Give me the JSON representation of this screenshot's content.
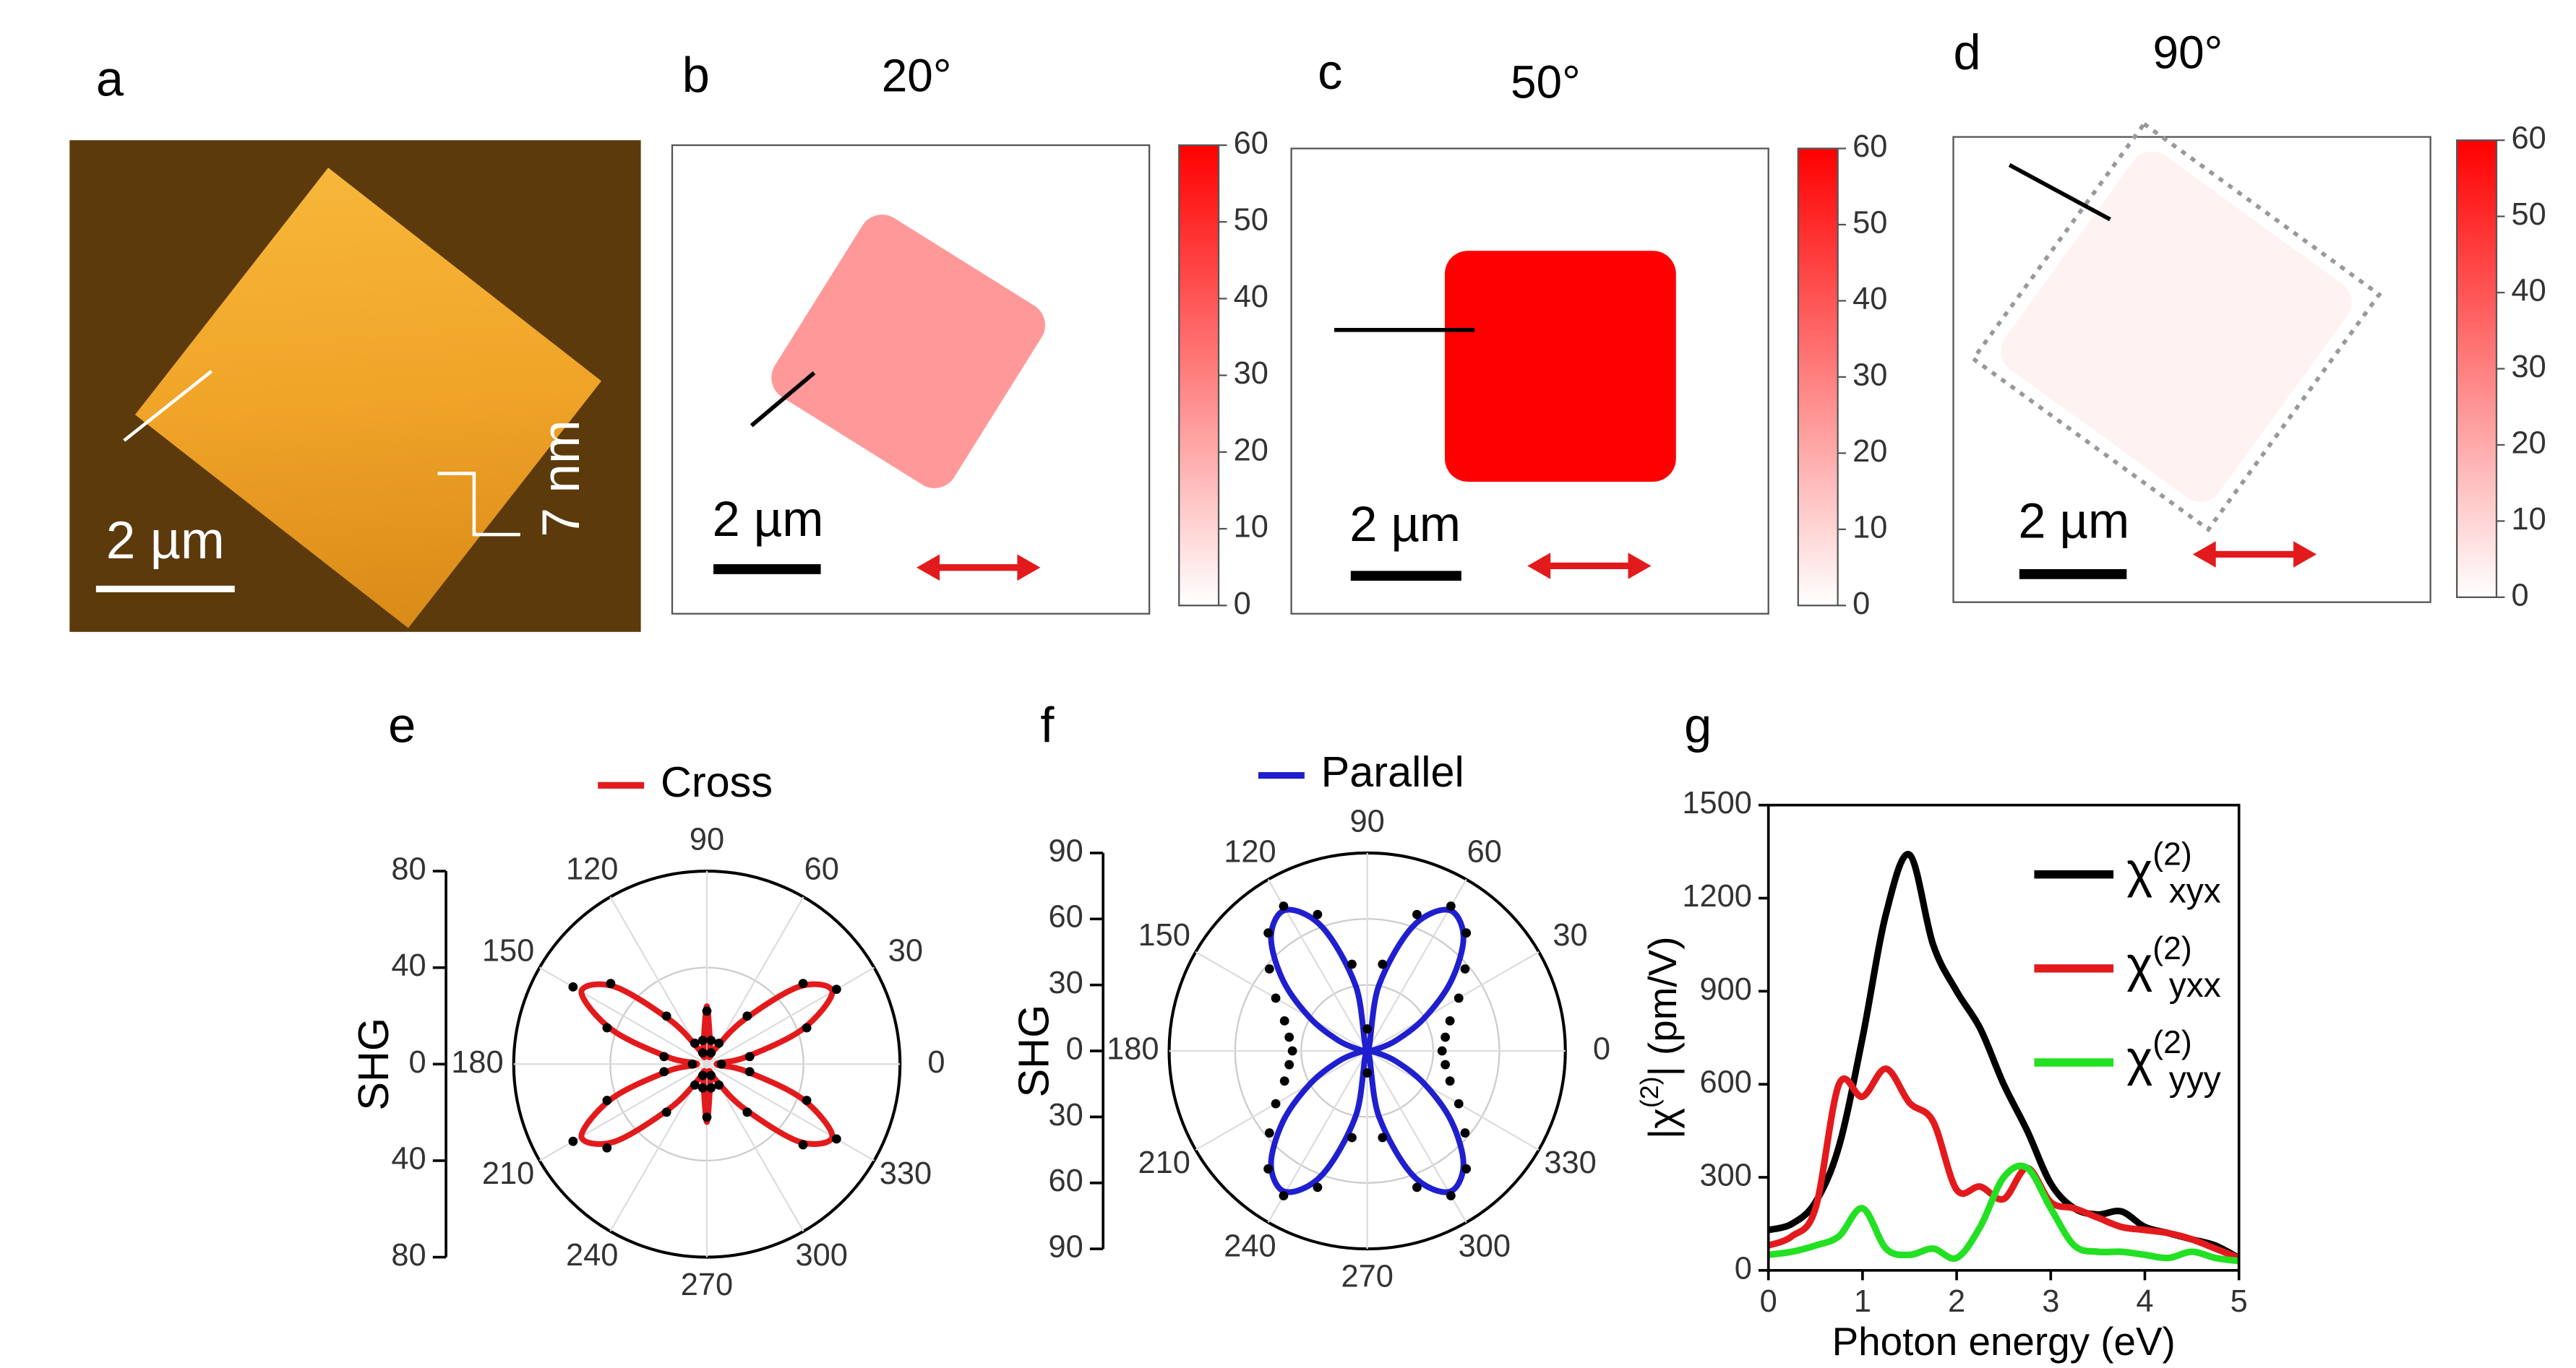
{
  "chart_data": [
    {
      "type": "image",
      "label": "a",
      "scale_bar": "2 µm",
      "height_label": "7 nm"
    },
    {
      "type": "heatmap",
      "label": "b",
      "title": "20°",
      "level": 24,
      "color": "#ff0000",
      "clim": [
        0,
        60
      ],
      "cticks": [
        0,
        10,
        20,
        30,
        40,
        50,
        60
      ],
      "scale_bar": "2 µm"
    },
    {
      "type": "heatmap",
      "label": "c",
      "title": "50°",
      "level": 60,
      "color": "#ff0000",
      "clim": [
        0,
        60
      ],
      "cticks": [
        0,
        10,
        20,
        30,
        40,
        50,
        60
      ],
      "scale_bar": "2 µm"
    },
    {
      "type": "heatmap",
      "label": "d",
      "title": "90°",
      "level": 3,
      "color": "#ff0000",
      "clim": [
        0,
        60
      ],
      "cticks": [
        0,
        10,
        20,
        30,
        40,
        50,
        60
      ],
      "scale_bar": "2 µm"
    },
    {
      "type": "polar",
      "label": "e",
      "ylabel": "SHG",
      "ylim": [
        -80,
        80
      ],
      "yticks": [
        {
          "value": -80,
          "label": "80"
        },
        {
          "value": -40,
          "label": "40"
        },
        0,
        40,
        80
      ],
      "thetaticks": [
        0,
        30,
        60,
        90,
        120,
        150,
        180,
        210,
        240,
        270,
        300,
        330
      ],
      "theta": [
        0,
        10,
        20,
        30,
        40,
        50,
        60,
        70,
        80,
        90,
        100,
        110,
        120,
        130,
        140,
        150,
        160,
        170,
        180,
        190,
        200,
        210,
        220,
        230,
        240,
        250,
        260,
        270,
        280,
        290,
        300,
        310,
        320,
        330,
        340,
        350
      ],
      "series": [
        {
          "name": "Cross",
          "color": "#e31a1c",
          "values": [
            4,
            16,
            42,
            60,
            50,
            24,
            8,
            3,
            8,
            24,
            8,
            3,
            8,
            24,
            50,
            60,
            42,
            16,
            4,
            16,
            42,
            60,
            50,
            24,
            8,
            3,
            8,
            24,
            8,
            3,
            8,
            24,
            50,
            60,
            42,
            16
          ]
        },
        {
          "color": "#000000",
          "values": [
            6,
            18,
            44,
            62,
            52,
            26,
            10,
            5,
            10,
            22,
            10,
            5,
            10,
            26,
            52,
            64,
            44,
            18,
            6,
            18,
            44,
            64,
            54,
            26,
            10,
            5,
            10,
            22,
            10,
            5,
            10,
            26,
            52,
            62,
            44,
            18
          ]
        }
      ]
    },
    {
      "type": "polar",
      "label": "f",
      "ylabel": "SHG",
      "ylim": [
        -90,
        90
      ],
      "yticks": [
        {
          "value": -90,
          "label": "90"
        },
        {
          "value": -60,
          "label": "60"
        },
        {
          "value": -30,
          "label": "30"
        },
        0,
        30,
        60,
        90
      ],
      "thetaticks": [
        0,
        30,
        60,
        90,
        120,
        150,
        180,
        210,
        240,
        270,
        300,
        330
      ],
      "theta": [
        0,
        10,
        20,
        30,
        40,
        50,
        60,
        70,
        80,
        90,
        100,
        110,
        120,
        130,
        140,
        150,
        160,
        170,
        180,
        190,
        200,
        210,
        220,
        230,
        240,
        250,
        260,
        270,
        280,
        290,
        300,
        310,
        320,
        330,
        340,
        350
      ],
      "series": [
        {
          "name": "Parallel",
          "color": "#1f1fcf",
          "values": [
            0,
            4,
            14,
            30,
            50,
            68,
            74,
            60,
            30,
            0,
            30,
            60,
            74,
            68,
            50,
            30,
            14,
            4,
            0,
            4,
            14,
            30,
            50,
            68,
            74,
            60,
            30,
            0,
            30,
            60,
            74,
            68,
            50,
            30,
            14,
            4
          ]
        },
        {
          "color": "#000000",
          "values": [
            34,
            36,
            40,
            48,
            58,
            70,
            76,
            66,
            40,
            10,
            40,
            66,
            76,
            70,
            58,
            48,
            40,
            36,
            34,
            36,
            40,
            48,
            58,
            70,
            76,
            66,
            40,
            10,
            40,
            66,
            76,
            70,
            58,
            48,
            40,
            36
          ]
        }
      ]
    },
    {
      "type": "line",
      "label": "g",
      "xlabel": "Photon energy (eV)",
      "ylabel": "|χ(2)| (pm/V)",
      "xlim": [
        0,
        5
      ],
      "xticks": [
        0,
        1,
        2,
        3,
        4,
        5
      ],
      "ylim": [
        0,
        1500
      ],
      "yticks": [
        0,
        300,
        600,
        900,
        1200,
        1500
      ],
      "x": [
        0,
        0.25,
        0.5,
        0.75,
        1,
        1.25,
        1.5,
        1.75,
        2,
        2.25,
        2.5,
        2.75,
        3,
        3.25,
        3.5,
        3.75,
        4,
        4.25,
        4.5,
        4.75,
        5
      ],
      "series": [
        {
          "name": "χ(2)xyx",
          "color": "#000000",
          "values": [
            130,
            150,
            220,
            400,
            750,
            1150,
            1340,
            1050,
            900,
            780,
            600,
            450,
            280,
            200,
            180,
            190,
            140,
            120,
            100,
            80,
            40
          ]
        },
        {
          "name": "χ(2)yxx",
          "color": "#e31a1c",
          "values": [
            80,
            110,
            200,
            600,
            560,
            650,
            540,
            480,
            260,
            270,
            230,
            330,
            220,
            200,
            170,
            140,
            130,
            120,
            100,
            70,
            40
          ]
        },
        {
          "name": "χ(2)yyy",
          "color": "#22e022",
          "values": [
            50,
            60,
            80,
            110,
            200,
            70,
            50,
            70,
            40,
            140,
            300,
            330,
            200,
            80,
            60,
            60,
            50,
            40,
            60,
            40,
            30
          ]
        }
      ]
    }
  ]
}
